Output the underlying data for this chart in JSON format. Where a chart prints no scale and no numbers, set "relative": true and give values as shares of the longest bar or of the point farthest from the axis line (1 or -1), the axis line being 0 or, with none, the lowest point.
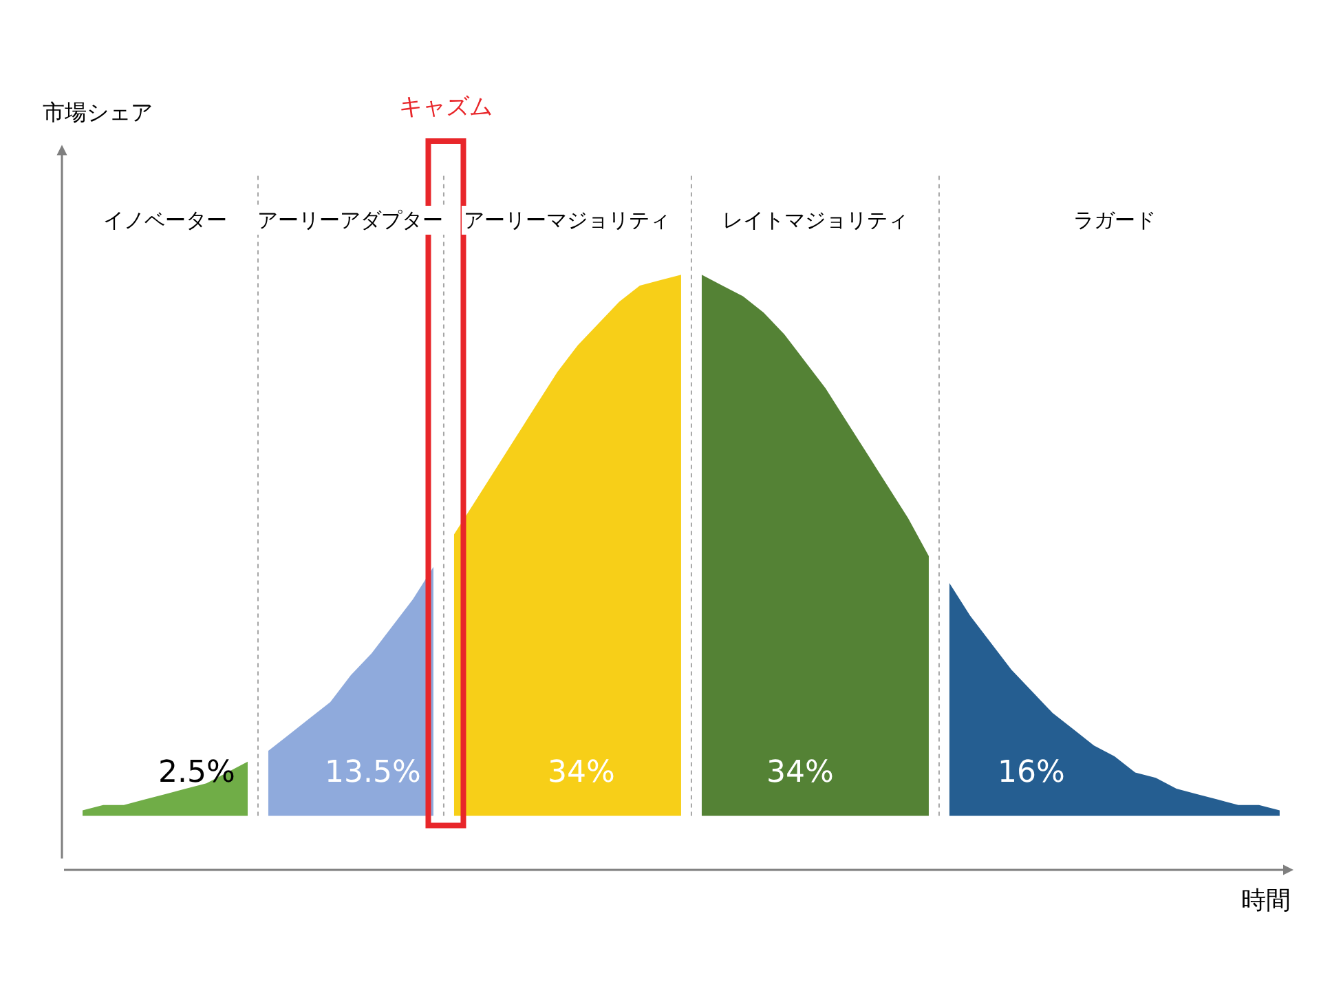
{
  "chart_data": {
    "type": "area",
    "relative": true,
    "xlabel": "時間",
    "legend": false,
    "categories": [
      null,
      null,
      null,
      null,
      null,
      null,
      null,
      null,
      null,
      null,
      null,
      null,
      null,
      null,
      null,
      null,
      null,
      null,
      null,
      null,
      null,
      null,
      null,
      null,
      null,
      null,
      null,
      null,
      null,
      null,
      null,
      null,
      null,
      null,
      null,
      null,
      null,
      null,
      null,
      null,
      null,
      null,
      null,
      null,
      null,
      null,
      null,
      null,
      null,
      null,
      null,
      null,
      null,
      null,
      null,
      null,
      null,
      null,
      null
    ],
    "series": [
      {
        "color": "#70ad47",
        "values": [
          0.01,
          0.02,
          0.02,
          0.03,
          0.04,
          0.05,
          0.06,
          0.08,
          0.1,
          null,
          null,
          null,
          null,
          null,
          null,
          null,
          null,
          null,
          null,
          null,
          null,
          null,
          null,
          null,
          null,
          null,
          null,
          null,
          null,
          null,
          null,
          null,
          null,
          null,
          null,
          null,
          null,
          null,
          null,
          null,
          null,
          null,
          null,
          null,
          null,
          null,
          null,
          null,
          null,
          null,
          null,
          null,
          null,
          null,
          null,
          null,
          null,
          null,
          null
        ]
      },
      {
        "color": "#8faadc",
        "values": [
          null,
          null,
          null,
          null,
          null,
          null,
          null,
          null,
          null,
          0.12,
          0.15,
          0.18,
          0.21,
          0.26,
          0.3,
          0.35,
          0.4,
          0.46,
          null,
          null,
          null,
          null,
          null,
          null,
          null,
          null,
          null,
          null,
          null,
          null,
          null,
          null,
          null,
          null,
          null,
          null,
          null,
          null,
          null,
          null,
          null,
          null,
          null,
          null,
          null,
          null,
          null,
          null,
          null,
          null,
          null,
          null,
          null,
          null,
          null,
          null,
          null,
          null,
          null
        ]
      },
      {
        "color": "#f7cf18",
        "values": [
          null,
          null,
          null,
          null,
          null,
          null,
          null,
          null,
          null,
          null,
          null,
          null,
          null,
          null,
          null,
          null,
          null,
          null,
          0.52,
          0.58,
          0.64,
          0.7,
          0.76,
          0.82,
          0.87,
          0.91,
          0.95,
          0.98,
          0.99,
          1.0,
          null,
          null,
          null,
          null,
          null,
          null,
          null,
          null,
          null,
          null,
          null,
          null,
          null,
          null,
          null,
          null,
          null,
          null,
          null,
          null,
          null,
          null,
          null,
          null,
          null,
          null,
          null,
          null,
          null
        ]
      },
      {
        "color": "#548235",
        "values": [
          null,
          null,
          null,
          null,
          null,
          null,
          null,
          null,
          null,
          null,
          null,
          null,
          null,
          null,
          null,
          null,
          null,
          null,
          null,
          null,
          null,
          null,
          null,
          null,
          null,
          null,
          null,
          null,
          null,
          null,
          1.0,
          0.98,
          0.96,
          0.93,
          0.89,
          0.84,
          0.79,
          0.73,
          0.67,
          0.61,
          0.55,
          0.48,
          null,
          null,
          null,
          null,
          null,
          null,
          null,
          null,
          null,
          null,
          null,
          null,
          null,
          null,
          null,
          null,
          null
        ]
      },
      {
        "color": "#255e91",
        "values": [
          null,
          null,
          null,
          null,
          null,
          null,
          null,
          null,
          null,
          null,
          null,
          null,
          null,
          null,
          null,
          null,
          null,
          null,
          null,
          null,
          null,
          null,
          null,
          null,
          null,
          null,
          null,
          null,
          null,
          null,
          null,
          null,
          null,
          null,
          null,
          null,
          null,
          null,
          null,
          null,
          null,
          null,
          0.43,
          0.37,
          0.32,
          0.27,
          0.23,
          0.19,
          0.16,
          0.13,
          0.11,
          0.08,
          0.07,
          0.05,
          0.04,
          0.03,
          0.02,
          0.02,
          0.01
        ]
      }
    ],
    "annotations": [
      "イノベーター",
      "アーリーアダプター",
      "アーリーマジョリティ",
      "レイトマジョリティ",
      "ラガード",
      "2.5%",
      "13.5%",
      "34%",
      "34%",
      "16%",
      "キャズム",
      "市場シェア"
    ]
  }
}
